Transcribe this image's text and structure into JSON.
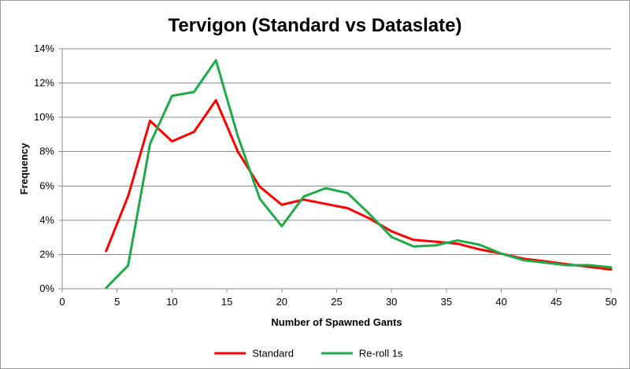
{
  "chart_data": {
    "type": "line",
    "title": "Tervigon (Standard vs Dataslate)",
    "xlabel": "Number of Spawned Gants",
    "ylabel": "Frequency",
    "xlim": [
      0,
      50
    ],
    "ylim": [
      0,
      0.14
    ],
    "x_ticks": [
      0,
      5,
      10,
      15,
      20,
      25,
      30,
      35,
      40,
      45,
      50
    ],
    "x_tick_labels": [
      "0",
      "5",
      "10",
      "15",
      "20",
      "25",
      "30",
      "35",
      "40",
      "45",
      "50"
    ],
    "y_ticks": [
      0,
      0.02,
      0.04,
      0.06,
      0.08,
      0.1,
      0.12,
      0.14
    ],
    "y_tick_labels": [
      "0%",
      "2%",
      "4%",
      "6%",
      "8%",
      "10%",
      "12%",
      "14%"
    ],
    "grid": "horizontal",
    "legend_position": "bottom",
    "series": [
      {
        "name": "Standard",
        "color": "#ff0000",
        "points": [
          [
            4,
            0.022
          ],
          [
            6,
            0.054
          ],
          [
            8,
            0.098
          ],
          [
            10,
            0.086
          ],
          [
            12,
            0.0915
          ],
          [
            14,
            0.11
          ],
          [
            16,
            0.08
          ],
          [
            18,
            0.0595
          ],
          [
            20,
            0.049
          ],
          [
            22,
            0.052
          ],
          [
            24,
            0.0495
          ],
          [
            26,
            0.047
          ],
          [
            28,
            0.041
          ],
          [
            30,
            0.0335
          ],
          [
            32,
            0.0285
          ],
          [
            34,
            0.0275
          ],
          [
            36,
            0.0263
          ],
          [
            38,
            0.023
          ],
          [
            40,
            0.0205
          ],
          [
            42,
            0.0175
          ],
          [
            44,
            0.016
          ],
          [
            46,
            0.0143
          ],
          [
            48,
            0.0128
          ],
          [
            50,
            0.0112
          ]
        ]
      },
      {
        "name": "Re-roll 1s",
        "color": "#1faa4a",
        "points": [
          [
            4,
            0.0005
          ],
          [
            6,
            0.0135
          ],
          [
            8,
            0.0845
          ],
          [
            10,
            0.1125
          ],
          [
            12,
            0.1148
          ],
          [
            14,
            0.1333
          ],
          [
            16,
            0.089
          ],
          [
            18,
            0.0525
          ],
          [
            20,
            0.0365
          ],
          [
            22,
            0.0538
          ],
          [
            24,
            0.0587
          ],
          [
            26,
            0.0558
          ],
          [
            28,
            0.0435
          ],
          [
            30,
            0.0302
          ],
          [
            32,
            0.0247
          ],
          [
            34,
            0.0253
          ],
          [
            36,
            0.0282
          ],
          [
            38,
            0.0257
          ],
          [
            40,
            0.0205
          ],
          [
            42,
            0.0167
          ],
          [
            44,
            0.0152
          ],
          [
            46,
            0.0137
          ],
          [
            48,
            0.0138
          ],
          [
            50,
            0.0125
          ]
        ]
      }
    ]
  }
}
